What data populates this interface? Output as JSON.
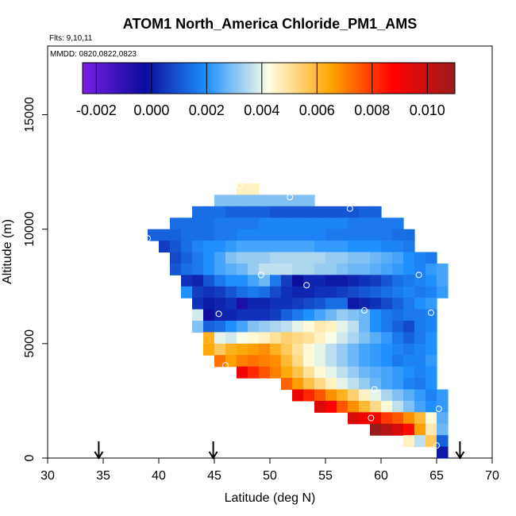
{
  "chart_data": {
    "type": "heatmap",
    "title": "ATOM1 North_America Chloride_PM1_AMS",
    "annotation_flights": "Flts: 9,10,11",
    "annotation_dates": "MMDD: 0820,0822,0823",
    "xlabel": "Latitude (deg N)",
    "ylabel": "Altitude (m)",
    "xlim": [
      30,
      70
    ],
    "ylim": [
      0,
      18000
    ],
    "xticks": [
      "30",
      "35",
      "40",
      "45",
      "50",
      "55",
      "60",
      "65",
      "70"
    ],
    "yticks": [
      "0",
      "5000",
      "10000",
      "15000"
    ],
    "colorbar": {
      "range": [
        -0.0025,
        0.011
      ],
      "ticks": [
        "-0.002",
        "0.000",
        "0.002",
        "0.004",
        "0.006",
        "0.008",
        "0.010"
      ],
      "tick_values": [
        -0.002,
        0.0,
        0.002,
        0.004,
        0.006,
        0.008,
        0.01
      ],
      "colors": [
        "#7a1fe6",
        "#0b0b9c",
        "#1e90ff",
        "#ffffe6",
        "#ffa500",
        "#ff0000",
        "#9b1b1b"
      ]
    },
    "cell_size": {
      "lat": 1.0,
      "alt": 500
    },
    "value_scale": 0.001,
    "rows": [
      {
        "alt": 11750,
        "lat_start": 47,
        "values": [
          4.6,
          4.6
        ]
      },
      {
        "alt": 11250,
        "lat_start": 45,
        "values": [
          3.0,
          3.0,
          3.0,
          3.0,
          3.0,
          3.0,
          3.0,
          3.0,
          3.0
        ]
      },
      {
        "alt": 10750,
        "lat_start": 43,
        "values": [
          1.4,
          1.4,
          1.4,
          1.2,
          1.2,
          1.2,
          1.2,
          1.0,
          1.0,
          1.0,
          1.0,
          1.0,
          1.0,
          1.0,
          1.0,
          1.2,
          1.2
        ]
      },
      {
        "alt": 10250,
        "lat_start": 41,
        "values": [
          1.4,
          1.4,
          1.4,
          1.4,
          1.6,
          1.6,
          1.6,
          1.6,
          1.8,
          1.8,
          1.8,
          1.8,
          1.8,
          1.8,
          1.8,
          1.8,
          1.6,
          1.6,
          1.6,
          1.6,
          1.6
        ]
      },
      {
        "alt": 9750,
        "lat_start": 39,
        "values": [
          1.2,
          1.2,
          1.2,
          1.4,
          1.4,
          1.4,
          1.6,
          1.6,
          1.8,
          1.8,
          1.8,
          1.8,
          1.8,
          1.8,
          1.8,
          1.8,
          1.6,
          1.6,
          1.6,
          1.6,
          1.6,
          1.6,
          1.4,
          1.4
        ]
      },
      {
        "alt": 9250,
        "lat_start": 40,
        "values": [
          0.6,
          1.0,
          1.4,
          1.8,
          2.0,
          2.0,
          2.2,
          2.4,
          2.4,
          2.4,
          2.4,
          2.4,
          2.4,
          2.4,
          2.2,
          2.2,
          2.2,
          2.0,
          2.0,
          2.0,
          1.8,
          1.8,
          1.6
        ]
      },
      {
        "alt": 8750,
        "lat_start": 41,
        "values": [
          0.8,
          1.2,
          1.6,
          2.0,
          2.4,
          3.0,
          3.2,
          3.2,
          3.2,
          3.4,
          3.4,
          3.4,
          3.4,
          3.4,
          3.2,
          3.2,
          3.0,
          3.0,
          2.8,
          2.6,
          2.4,
          2.0,
          1.8,
          1.6
        ]
      },
      {
        "alt": 8250,
        "lat_start": 41,
        "values": [
          1.0,
          1.4,
          1.6,
          2.0,
          2.4,
          2.6,
          2.8,
          3.2,
          3.6,
          3.6,
          3.6,
          3.4,
          3.4,
          3.2,
          3.2,
          3.0,
          2.8,
          2.8,
          2.6,
          2.4,
          2.2,
          2.0,
          1.8,
          2.2,
          2.4
        ]
      },
      {
        "alt": 7750,
        "lat_start": 42,
        "values": [
          0.4,
          0.2,
          1.0,
          1.6,
          2.0,
          2.0,
          2.4,
          2.8,
          1.6,
          0.6,
          -0.2,
          0.2,
          0.2,
          0.0,
          0.0,
          0.2,
          0.4,
          0.6,
          1.0,
          1.4,
          1.6,
          1.8,
          2.0,
          2.4
        ]
      },
      {
        "alt": 7250,
        "lat_start": 42,
        "values": [
          2.0,
          0.6,
          0.4,
          0.6,
          1.0,
          1.4,
          1.6,
          1.4,
          0.8,
          0.4,
          0.2,
          0.2,
          0.4,
          0.4,
          0.6,
          0.8,
          1.0,
          1.2,
          1.4,
          1.6,
          1.8,
          1.6,
          1.8,
          2.2
        ]
      },
      {
        "alt": 6750,
        "lat_start": 43,
        "values": [
          0.4,
          0.0,
          0.2,
          0.4,
          -0.6,
          0.2,
          0.2,
          0.4,
          0.4,
          0.6,
          0.8,
          1.0,
          1.4,
          1.4,
          0.0,
          0.2,
          0.4,
          0.8,
          1.2,
          1.6,
          2.0,
          2.2
        ]
      },
      {
        "alt": 6250,
        "lat_start": 43,
        "values": [
          3.8,
          -0.4,
          0.2,
          0.2,
          0.4,
          0.4,
          0.4,
          0.6,
          1.2,
          1.6,
          2.0,
          2.4,
          2.8,
          3.2,
          3.0,
          2.8,
          2.0,
          1.6,
          1.4,
          1.6,
          1.6,
          1.8
        ]
      },
      {
        "alt": 5750,
        "lat_start": 43,
        "values": [
          3.0,
          1.2,
          1.4,
          2.0,
          2.4,
          3.0,
          3.2,
          3.4,
          3.6,
          4.0,
          4.4,
          4.8,
          4.6,
          4.0,
          3.6,
          2.8,
          2.0,
          1.6,
          1.2,
          0.8,
          1.6,
          1.8
        ]
      },
      {
        "alt": 5250,
        "lat_start": 44,
        "values": [
          6.2,
          4.0,
          3.8,
          4.2,
          4.4,
          4.6,
          5.0,
          5.4,
          5.2,
          5.0,
          4.6,
          4.2,
          3.8,
          3.4,
          3.0,
          2.6,
          2.2,
          1.6,
          1.2,
          1.6,
          2.0
        ]
      },
      {
        "alt": 4750,
        "lat_start": 44,
        "values": [
          6.4,
          5.6,
          6.2,
          6.4,
          6.6,
          6.8,
          6.2,
          5.6,
          5.0,
          4.4,
          4.0,
          3.6,
          3.2,
          2.8,
          2.4,
          2.2,
          2.0,
          1.8,
          1.6,
          1.8,
          2.0
        ]
      },
      {
        "alt": 4250,
        "lat_start": 45,
        "values": [
          7.2,
          6.6,
          7.0,
          7.2,
          7.0,
          6.8,
          6.0,
          5.2,
          4.4,
          4.0,
          3.6,
          3.2,
          2.8,
          2.4,
          2.2,
          2.0,
          1.6,
          1.8,
          1.8,
          2.2
        ]
      },
      {
        "alt": 3750,
        "lat_start": 47,
        "values": [
          9.0,
          8.2,
          7.6,
          7.0,
          6.4,
          5.8,
          5.0,
          4.4,
          4.0,
          3.6,
          3.2,
          2.8,
          2.6,
          2.4,
          2.2,
          2.0,
          1.8,
          2.0
        ]
      },
      {
        "alt": 3250,
        "lat_start": 51,
        "values": [
          7.4,
          6.6,
          5.8,
          5.2,
          4.6,
          4.0,
          3.6,
          3.2,
          2.8,
          2.4,
          2.2,
          1.8,
          1.6,
          2.0
        ]
      },
      {
        "alt": 2750,
        "lat_start": 52,
        "values": [
          9.2,
          8.2,
          7.6,
          6.8,
          6.2,
          5.4,
          4.6,
          4.0,
          3.4,
          3.0,
          2.6,
          2.2,
          1.8,
          2.2
        ]
      },
      {
        "alt": 2250,
        "lat_start": 54,
        "values": [
          9.6,
          8.8,
          7.6,
          6.8,
          6.0,
          5.2,
          4.4,
          3.6,
          3.0,
          2.4,
          2.0,
          2.2
        ]
      },
      {
        "alt": 1750,
        "lat_start": 57,
        "values": [
          9.6,
          9.0,
          8.8,
          8.0,
          7.6,
          6.8,
          6.0,
          4.4,
          2.6
        ]
      },
      {
        "alt": 1250,
        "lat_start": 59,
        "values": [
          11.0,
          10.4,
          9.6,
          8.6,
          6.6,
          4.8,
          2.8
        ]
      },
      {
        "alt": 750,
        "lat_start": 62,
        "values": [
          4.6,
          3.6,
          5.6,
          1.2
        ]
      },
      {
        "alt": 250,
        "lat_start": 65,
        "values": [
          0.0
        ]
      }
    ],
    "markers": [
      [
        47.3,
        11900
      ],
      [
        51.8,
        11400
      ],
      [
        42.5,
        10850
      ],
      [
        57.2,
        10900
      ],
      [
        39.0,
        9600
      ],
      [
        49.2,
        8000
      ],
      [
        53.3,
        7550
      ],
      [
        63.4,
        8000
      ],
      [
        66.8,
        7950
      ],
      [
        45.4,
        6300
      ],
      [
        58.5,
        6450
      ],
      [
        64.5,
        6350
      ],
      [
        46.0,
        4050
      ],
      [
        59.4,
        3000
      ],
      [
        59.1,
        1750
      ],
      [
        65.2,
        2150
      ],
      [
        65.0,
        550
      ]
    ],
    "arrows_lat": [
      34.6,
      44.9,
      67.1
    ]
  }
}
